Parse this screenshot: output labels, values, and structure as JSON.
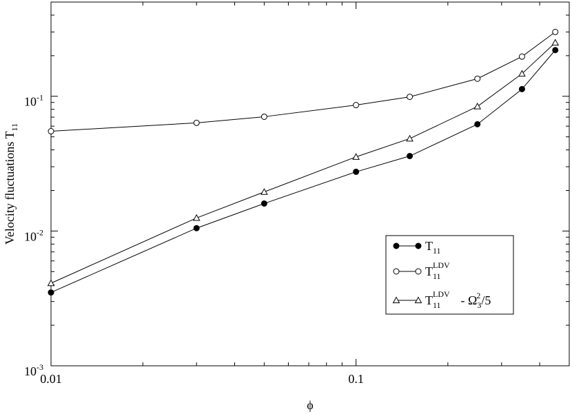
{
  "chart_data": {
    "type": "line",
    "xscale": "log",
    "yscale": "log",
    "xlim": [
      0.01,
      0.5
    ],
    "ylim": [
      0.001,
      0.5
    ],
    "xlabel": "ϕ",
    "ylabel": {
      "text": "Velocity fluctuations  T",
      "subscript": "11"
    },
    "x_ticks": [
      {
        "value": 0.01,
        "label": "0.01"
      },
      {
        "value": 0.1,
        "label": "0.1"
      }
    ],
    "y_ticks": [
      {
        "value": 0.001,
        "base": "10",
        "exp": "-3"
      },
      {
        "value": 0.01,
        "base": "10",
        "exp": "-2"
      },
      {
        "value": 0.1,
        "base": "10",
        "exp": "-1"
      }
    ],
    "grid": false,
    "legend_position": "bottom-right",
    "x": [
      0.01,
      0.03,
      0.05,
      0.1,
      0.15,
      0.25,
      0.35,
      0.45
    ],
    "series": [
      {
        "id": "T11",
        "marker": "filled-circle",
        "label": {
          "main": "T",
          "sub": "11"
        },
        "values": [
          0.0035,
          0.0105,
          0.016,
          0.0275,
          0.036,
          0.062,
          0.113,
          0.22
        ]
      },
      {
        "id": "T11_LDV",
        "marker": "open-circle",
        "label": {
          "main": "T",
          "sub": "11",
          "sup": "LDV"
        },
        "values": [
          0.055,
          0.0635,
          0.0705,
          0.086,
          0.099,
          0.135,
          0.197,
          0.3
        ]
      },
      {
        "id": "T11_LDV_minus",
        "marker": "open-triangle",
        "label": {
          "main": "T",
          "sub": "11",
          "sup": "LDV",
          "rest1": " - Ω",
          "rest_sub": "3",
          "rest_sup": "2",
          "rest2": "/5"
        },
        "values": [
          0.0041,
          0.0125,
          0.0195,
          0.0355,
          0.0485,
          0.084,
          0.147,
          0.25
        ]
      }
    ]
  }
}
